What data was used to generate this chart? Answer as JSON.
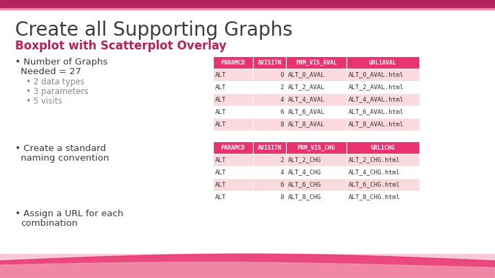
{
  "title": "Create all Supporting Graphs",
  "subtitle": "Boxplot with Scatterplot Overlay",
  "title_color": "#3a3a3a",
  "subtitle_color": "#b5215e",
  "background_color": "#ffffff",
  "top_bar_color": "#b5215e",
  "table1_header": [
    "PARAMCD",
    "AVISITN",
    "PRM_VIS_AVAL",
    "URL1AVAL"
  ],
  "table1_rows": [
    [
      "ALT",
      "0",
      "ALT_0_AVAL",
      "ALT_0_AVAL.html"
    ],
    [
      "ALT",
      "2",
      "ALT_2_AVAL",
      "ALT_2_AVAL.html"
    ],
    [
      "ALT",
      "4",
      "ALT_4_AVAL",
      "ALT_4_AVAL.html"
    ],
    [
      "ALT",
      "6",
      "ALT_6_AVAL",
      "ALT_6_AVAL.html"
    ],
    [
      "ALT",
      "8",
      "ALT_8_AVAL",
      "ALT_8_AVAL.html"
    ]
  ],
  "table2_header": [
    "PARAMCD",
    "AVISITN",
    "PRM_VIS_CHG",
    "URL1CHG"
  ],
  "table2_rows": [
    [
      "ALT",
      "2",
      "ALT_2_CHG",
      "ALT_2_CHG.html"
    ],
    [
      "ALT",
      "4",
      "ALT_4_CHG",
      "ALT_4_CHG.html"
    ],
    [
      "ALT",
      "6",
      "ALT_6_CHG",
      "ALT_6_CHG.html"
    ],
    [
      "ALT",
      "8",
      "ALT_8_CHG",
      "ALT_8_CHG.html"
    ]
  ],
  "header_bg": "#e8336e",
  "header_text": "#ffffff",
  "row_bg_odd": "#fadadd",
  "row_bg_even": "#ffffff",
  "table_text_color": "#333333",
  "header_font_size": 6.0,
  "row_font_size": 6.5,
  "bullet_color": "#3a3a3a",
  "sub_bullet_color": "#888888",
  "wave_color1": "#f4a0b8",
  "wave_color2": "#e8336e"
}
